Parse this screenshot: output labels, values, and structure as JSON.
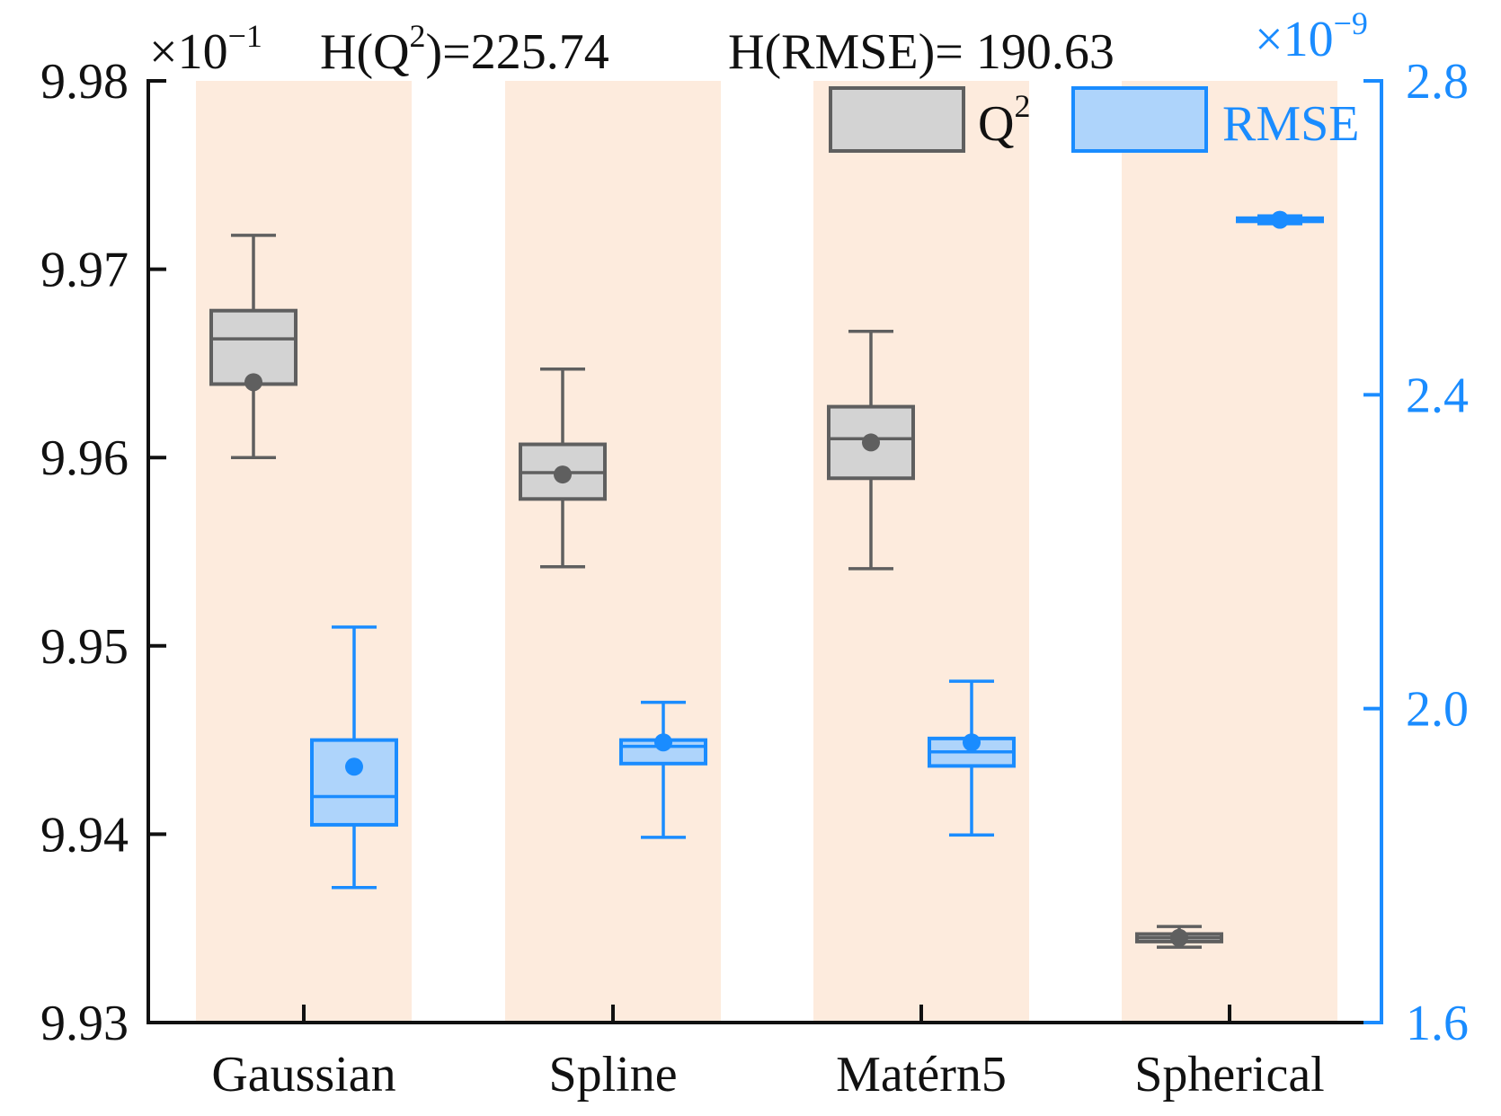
{
  "chart_data": {
    "type": "box",
    "categories": [
      "Gaussian",
      "Spline",
      "Matérn5",
      "Spherical"
    ],
    "header": {
      "left_multiplier_base": "×10",
      "left_multiplier_exp": "−1",
      "stat1_prefix": "H(Q",
      "stat1_sup": "2",
      "stat1_suffix": ")=225.74",
      "stat2": "H(RMSE)= 190.63",
      "right_multiplier_base": "×10",
      "right_multiplier_exp": "−9"
    },
    "y_left": {
      "ylim": [
        9.93,
        9.98
      ],
      "ticks": [
        9.93,
        9.94,
        9.95,
        9.96,
        9.97,
        9.98
      ],
      "tick_labels": [
        "9.93",
        "9.94",
        "9.95",
        "9.96",
        "9.97",
        "9.98"
      ]
    },
    "y_right": {
      "ylim": [
        1.6,
        2.8
      ],
      "ticks": [
        1.6,
        2.0,
        2.4,
        2.8
      ],
      "tick_labels": [
        "1.6",
        "2.0",
        "2.4",
        "2.8"
      ]
    },
    "colors": {
      "q2_fill": "#d3d3d3",
      "q2_stroke": "#5f5f5f",
      "rmse_fill": "#aed4fb",
      "rmse_stroke": "#1a8cff",
      "band": "#fdebdd",
      "axis": "#111111"
    },
    "legend": {
      "placement": "top-right",
      "q2_prefix": "Q",
      "q2_sup": "2",
      "rmse": "RMSE"
    },
    "series": [
      {
        "id": "q2",
        "axis": "left",
        "boxes": [
          {
            "whisker_low": 9.96,
            "q1": 9.9639,
            "median": 9.9663,
            "q3": 9.9678,
            "whisker_high": 9.9718,
            "mean": 9.964
          },
          {
            "whisker_low": 9.9542,
            "q1": 9.9578,
            "median": 9.9592,
            "q3": 9.9607,
            "whisker_high": 9.9647,
            "mean": 9.9591
          },
          {
            "whisker_low": 9.9541,
            "q1": 9.9589,
            "median": 9.961,
            "q3": 9.9627,
            "whisker_high": 9.9667,
            "mean": 9.9608
          },
          {
            "whisker_low": 9.934,
            "q1": 9.9343,
            "median": 9.9345,
            "q3": 9.9347,
            "whisker_high": 9.9351,
            "mean": 9.9345
          }
        ]
      },
      {
        "id": "rmse",
        "axis": "right",
        "boxes": [
          {
            "whisker_low": 1.772,
            "q1": 1.852,
            "median": 1.888,
            "q3": 1.96,
            "whisker_high": 2.104,
            "mean": 1.926
          },
          {
            "whisker_low": 1.836,
            "q1": 1.93,
            "median": 1.952,
            "q3": 1.96,
            "whisker_high": 2.008,
            "mean": 1.957
          },
          {
            "whisker_low": 1.839,
            "q1": 1.927,
            "median": 1.945,
            "q3": 1.962,
            "whisker_high": 2.035,
            "mean": 1.957
          },
          {
            "whisker_low": 2.618,
            "q1": 2.621,
            "median": 2.623,
            "q3": 2.625,
            "whisker_high": 2.628,
            "mean": 2.623
          }
        ]
      }
    ]
  }
}
